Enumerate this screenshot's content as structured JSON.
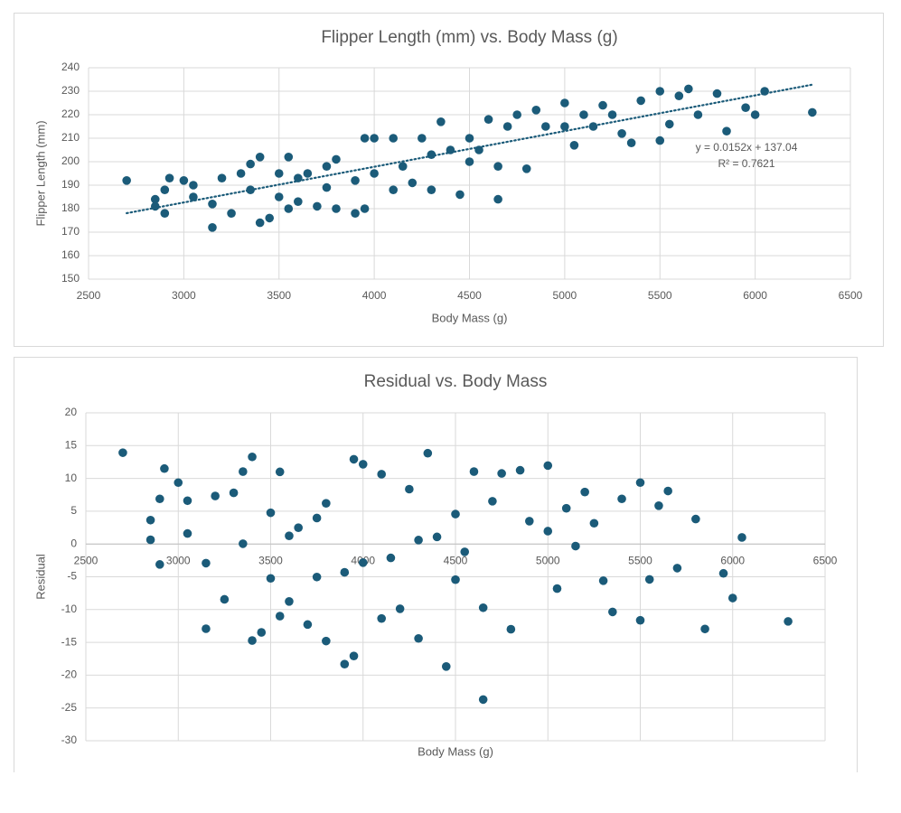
{
  "chart_data": [
    {
      "type": "scatter",
      "title": "Flipper Length (mm) vs. Body Mass (g)",
      "x_label": "Body Mass (g)",
      "y_label": "Flipper Length (mm)",
      "x": [
        2700,
        2850,
        2850,
        2925,
        2900,
        2900,
        3000,
        3050,
        3050,
        3150,
        3150,
        3200,
        3250,
        3300,
        3350,
        3400,
        3400,
        3450,
        3500,
        3500,
        3550,
        3550,
        3600,
        3650,
        3700,
        3750,
        3750,
        3800,
        3800,
        3900,
        3900,
        3950,
        3950,
        4000,
        4000,
        4100,
        4100,
        4200,
        4250,
        4300,
        4300,
        4350,
        4400,
        4450,
        4500,
        4550,
        4600,
        4650,
        4650,
        4700,
        4750,
        4800,
        4850,
        4900,
        5000,
        5000,
        5050,
        5150,
        5200,
        5300,
        5350,
        5400,
        5500,
        5500,
        5550,
        5600,
        5650,
        5700,
        5800,
        5850,
        5950,
        6000,
        6050,
        6300,
        3350,
        3600,
        4150,
        4500,
        5250,
        5100
      ],
      "values": [
        192,
        184,
        181,
        193,
        178,
        188,
        192,
        190,
        185,
        172,
        182,
        193,
        178,
        195,
        199,
        174,
        202,
        176,
        195,
        185,
        202,
        180,
        183,
        195,
        181,
        198,
        189,
        180,
        201,
        178,
        192,
        210,
        180,
        195,
        210,
        210,
        188,
        191,
        210,
        188,
        203,
        217,
        205,
        186,
        210,
        205,
        218,
        184,
        198,
        215,
        220,
        197,
        222,
        215,
        225,
        215,
        207,
        215,
        224,
        212,
        208,
        226,
        209,
        230,
        216,
        228,
        231,
        220,
        229,
        213,
        223,
        220,
        230,
        221,
        188,
        193,
        198,
        200,
        220,
        220
      ],
      "color": "#1b5b79",
      "xlim": [
        2500,
        6500
      ],
      "xticks": [
        2500,
        3000,
        3500,
        4000,
        4500,
        5000,
        5500,
        6000,
        6500
      ],
      "ylim": [
        150,
        240
      ],
      "yticks": [
        150,
        160,
        170,
        180,
        190,
        200,
        210,
        220,
        230,
        240
      ],
      "grid": true,
      "trendline": {
        "slope": 0.0152,
        "intercept": 137.04,
        "label": "y = 0.0152x + 137.04",
        "r2_label": "R² = 0.7621"
      }
    },
    {
      "type": "scatter",
      "title": "Residual vs. Body Mass",
      "x_label": "Body Mass (g)",
      "y_label": "Residual",
      "x": [
        2700,
        2850,
        2850,
        2925,
        2900,
        2900,
        3000,
        3050,
        3050,
        3150,
        3150,
        3200,
        3250,
        3300,
        3350,
        3400,
        3400,
        3450,
        3500,
        3500,
        3550,
        3550,
        3600,
        3650,
        3700,
        3750,
        3750,
        3800,
        3800,
        3900,
        3900,
        3950,
        3950,
        4000,
        4000,
        4100,
        4100,
        4200,
        4250,
        4300,
        4300,
        4350,
        4400,
        4450,
        4500,
        4550,
        4600,
        4650,
        4650,
        4700,
        4750,
        4800,
        4850,
        4900,
        5000,
        5000,
        5050,
        5150,
        5200,
        5300,
        5350,
        5400,
        5500,
        5500,
        5550,
        5600,
        5650,
        5700,
        5800,
        5850,
        5950,
        6000,
        6050,
        6300,
        3350,
        3600,
        4150,
        4500,
        5250,
        5100
      ],
      "values": [
        13.92,
        3.64,
        0.64,
        11.5,
        -3.12,
        6.88,
        9.36,
        6.6,
        1.6,
        -12.92,
        -2.92,
        7.32,
        -8.44,
        7.8,
        11.04,
        -14.72,
        13.28,
        -13.48,
        4.76,
        -5.24,
        11,
        -11,
        -8.76,
        2.48,
        -12.28,
        3.96,
        -5.04,
        -14.8,
        6.2,
        -18.32,
        -4.32,
        12.92,
        -17.08,
        -2.84,
        12.16,
        10.64,
        -11.36,
        -9.88,
        8.36,
        -14.4,
        0.6,
        13.84,
        1.08,
        -18.68,
        4.56,
        -1.2,
        11.04,
        -23.72,
        -9.72,
        6.52,
        10.76,
        -13,
        11.24,
        3.48,
        11.96,
        1.96,
        -6.8,
        -0.32,
        7.92,
        -5.6,
        -10.36,
        6.88,
        -11.64,
        9.36,
        -5.4,
        5.84,
        8.08,
        -3.68,
        3.8,
        -12.96,
        -4.48,
        -8.24,
        1,
        -11.8,
        0.04,
        1.24,
        -2.12,
        -5.44,
        3.16,
        5.44
      ],
      "color": "#1b5b79",
      "xlim": [
        2500,
        6500
      ],
      "xticks": [
        2500,
        3000,
        3500,
        4000,
        4500,
        5000,
        5500,
        6000,
        6500
      ],
      "ylim": [
        -30,
        20
      ],
      "yticks": [
        -30,
        -25,
        -20,
        -15,
        -10,
        -5,
        0,
        5,
        10,
        15,
        20
      ],
      "grid": true
    }
  ]
}
